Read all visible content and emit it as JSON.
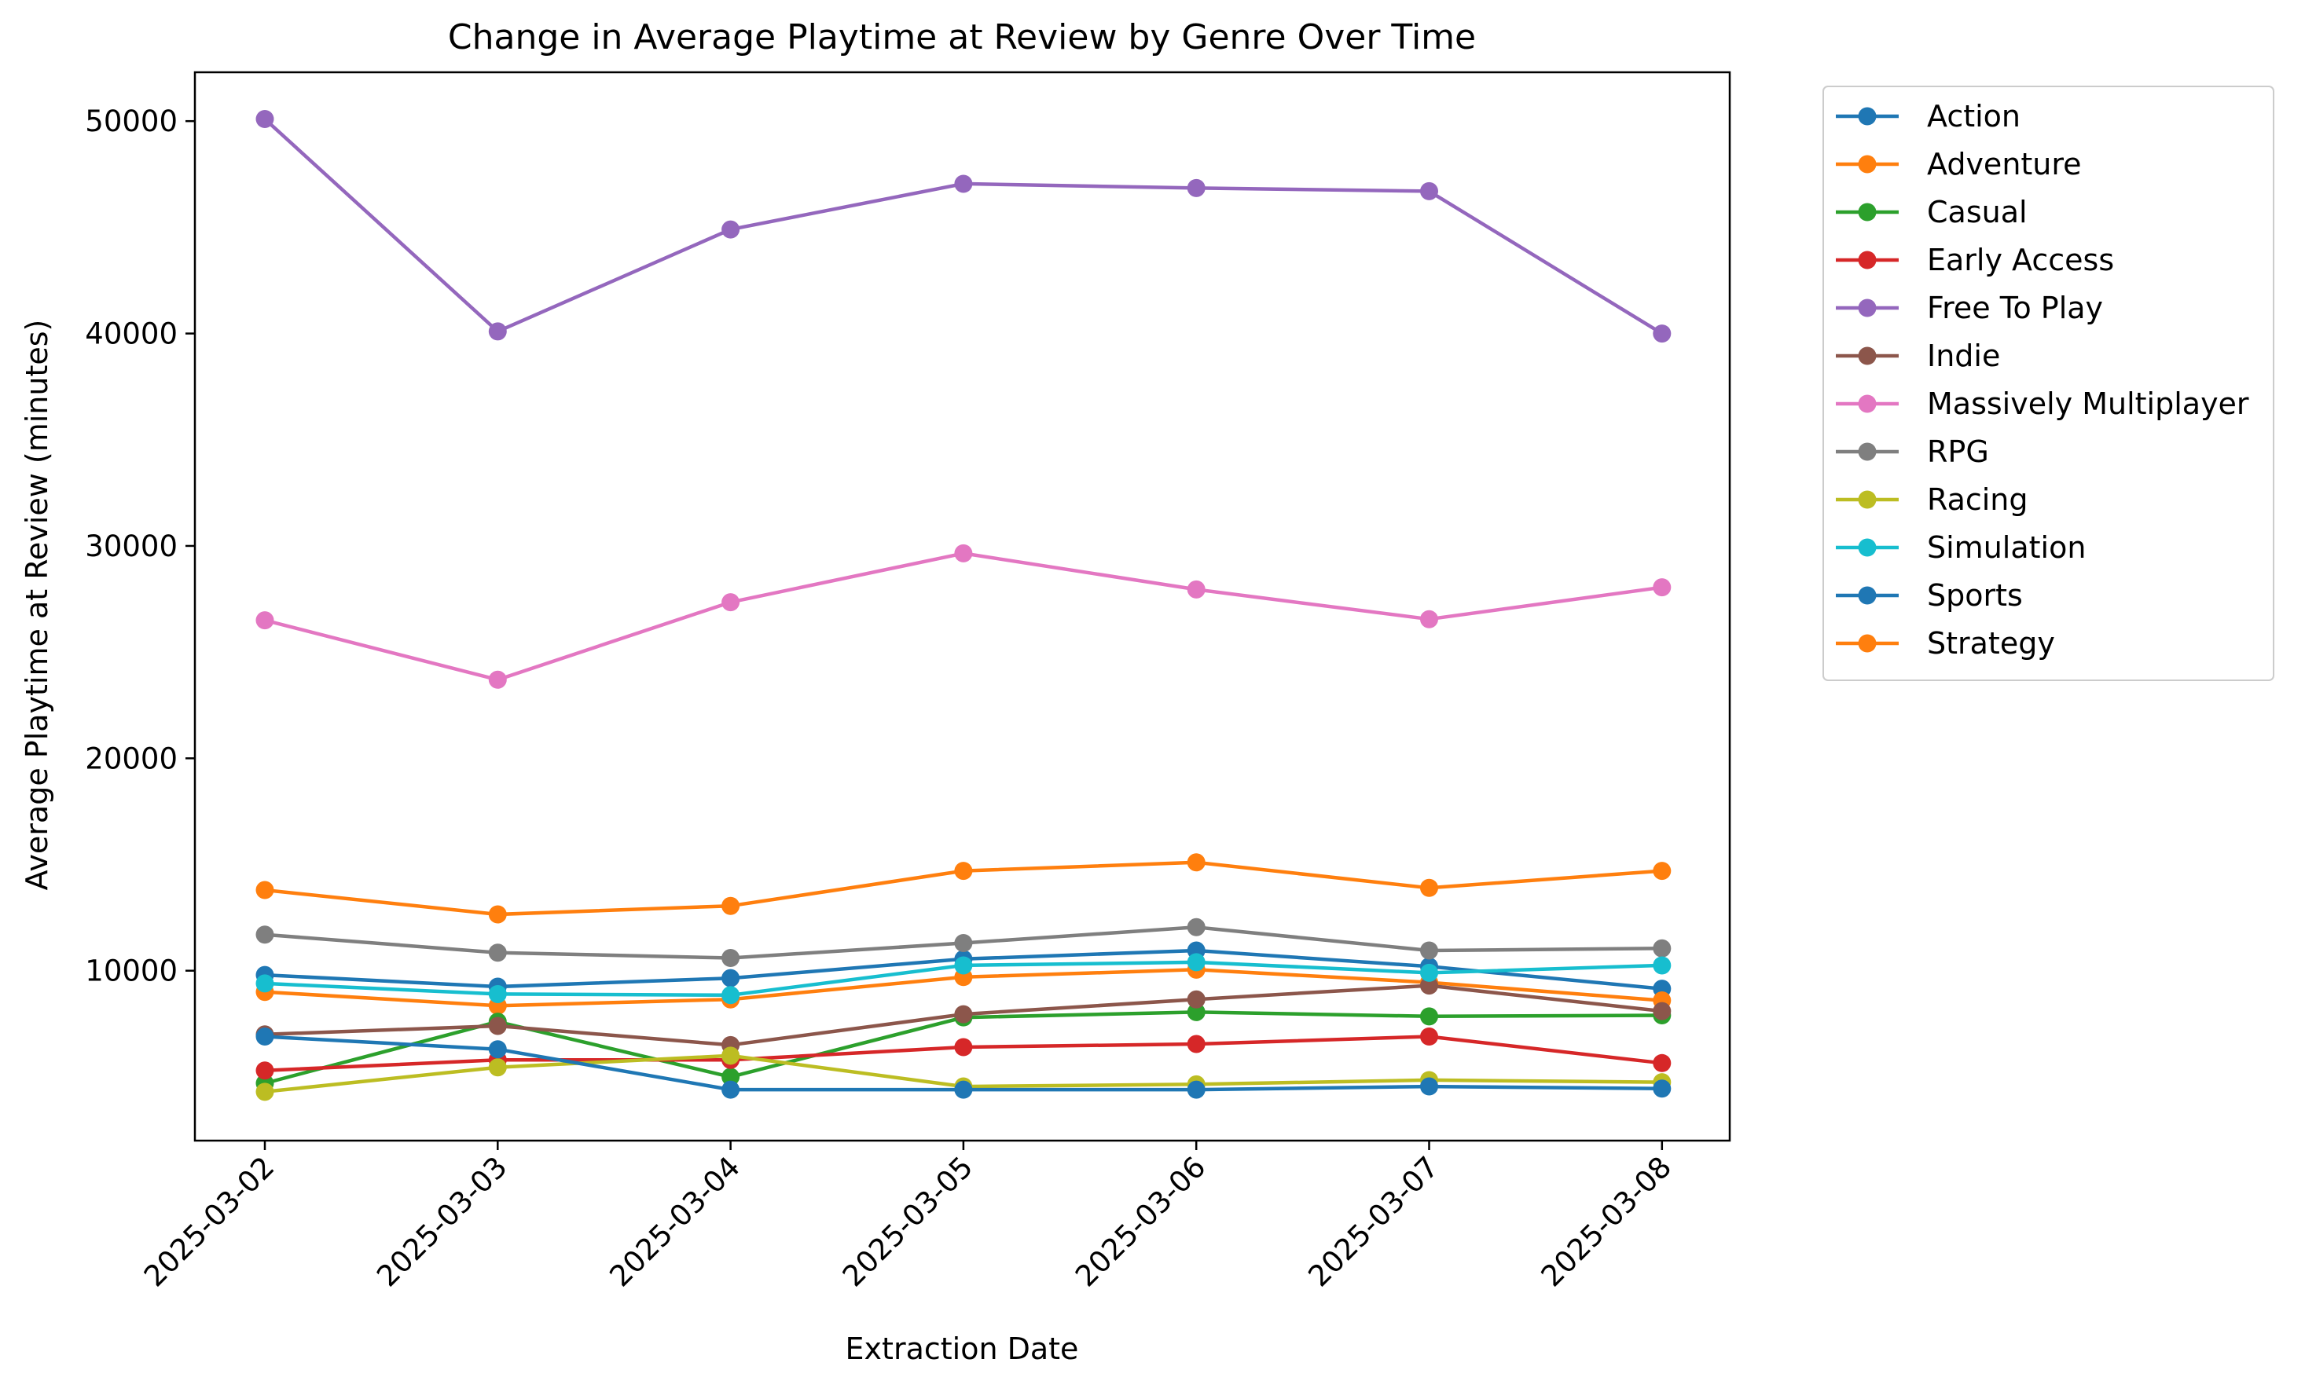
{
  "chart_data": {
    "type": "line",
    "title": "Change in Average Playtime at Review by Genre Over Time",
    "xlabel": "Extraction Date",
    "ylabel": "Average Playtime at Review (minutes)",
    "x": [
      "2025-03-02",
      "2025-03-03",
      "2025-03-04",
      "2025-03-05",
      "2025-03-06",
      "2025-03-07",
      "2025-03-08"
    ],
    "yticks": [
      "10000",
      "20000",
      "30000",
      "40000",
      "50000"
    ],
    "ylim": [
      2000,
      52300
    ],
    "grid": false,
    "legend_position": "outside-right",
    "series": [
      {
        "name": "Action",
        "color": "#1f77b4",
        "values": [
          9800,
          9250,
          9650,
          10550,
          10950,
          10200,
          9150
        ]
      },
      {
        "name": "Adventure",
        "color": "#ff7f0e",
        "values": [
          9000,
          8350,
          8650,
          9700,
          10050,
          9450,
          8600
        ]
      },
      {
        "name": "Casual",
        "color": "#2ca02c",
        "values": [
          4700,
          7600,
          5000,
          7800,
          8050,
          7850,
          7900
        ]
      },
      {
        "name": "Early Access",
        "color": "#d62728",
        "values": [
          5300,
          5800,
          5800,
          6400,
          6550,
          6900,
          5650
        ]
      },
      {
        "name": "Free To Play",
        "color": "#9467bd",
        "values": [
          50100,
          40100,
          44900,
          47050,
          46850,
          46700,
          40000
        ]
      },
      {
        "name": "Indie",
        "color": "#8c564b",
        "values": [
          7000,
          7400,
          6500,
          7950,
          8650,
          9300,
          8100
        ]
      },
      {
        "name": "Massively Multiplayer",
        "color": "#e377c2",
        "values": [
          26500,
          23700,
          27350,
          29650,
          27950,
          26550,
          28050
        ]
      },
      {
        "name": "RPG",
        "color": "#7f7f7f",
        "values": [
          11700,
          10850,
          10600,
          11300,
          12050,
          10950,
          11050
        ]
      },
      {
        "name": "Racing",
        "color": "#bcbd22",
        "values": [
          4300,
          5450,
          6000,
          4550,
          4650,
          4850,
          4750
        ]
      },
      {
        "name": "Simulation",
        "color": "#17becf",
        "values": [
          9400,
          8900,
          8850,
          10250,
          10400,
          9900,
          10250
        ]
      },
      {
        "name": "Sports",
        "color": "#1f77b4",
        "values": [
          6900,
          6300,
          4400,
          4400,
          4400,
          4550,
          4450
        ]
      },
      {
        "name": "Strategy",
        "color": "#ff7f0e",
        "values": [
          13800,
          12650,
          13050,
          14700,
          15100,
          13900,
          14700
        ]
      }
    ]
  }
}
